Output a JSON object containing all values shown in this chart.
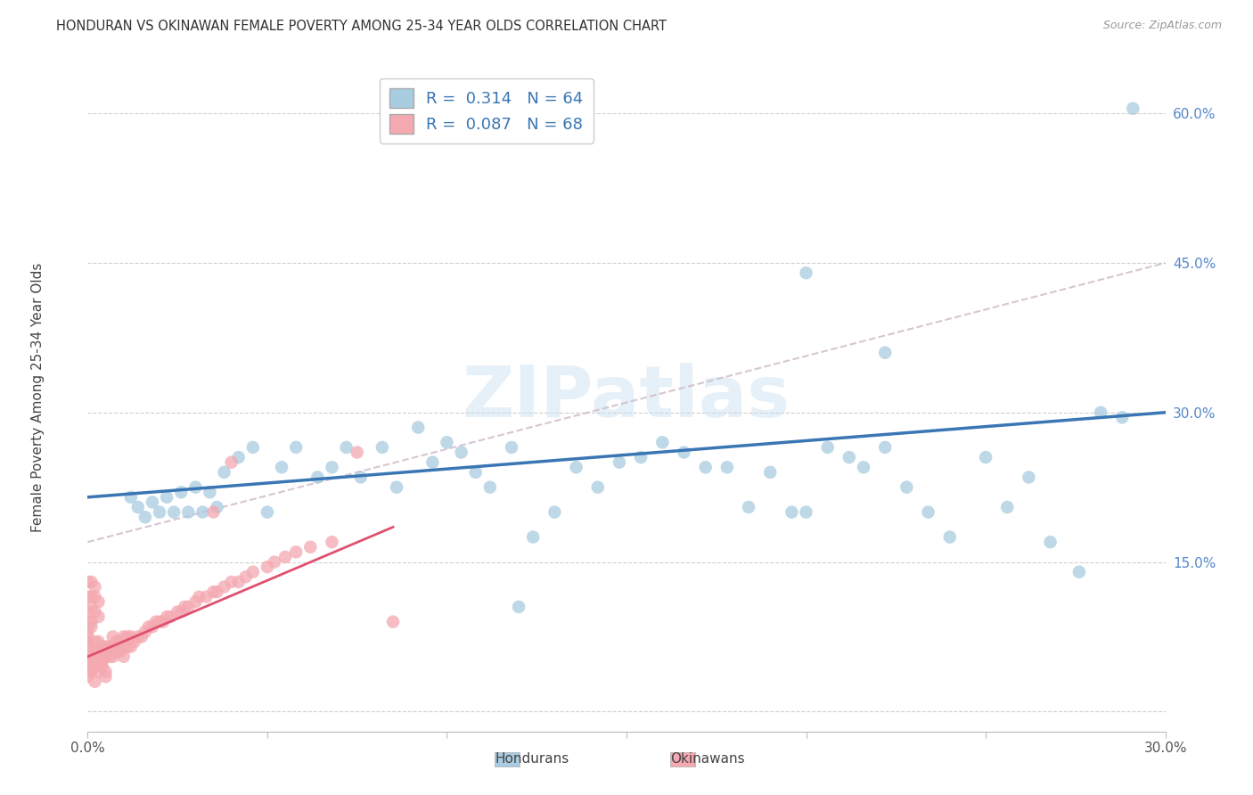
{
  "title": "HONDURAN VS OKINAWAN FEMALE POVERTY AMONG 25-34 YEAR OLDS CORRELATION CHART",
  "source": "Source: ZipAtlas.com",
  "ylabel": "Female Poverty Among 25-34 Year Olds",
  "xlim": [
    0.0,
    0.3
  ],
  "ylim": [
    -0.02,
    0.65
  ],
  "xticks": [
    0.0,
    0.05,
    0.1,
    0.15,
    0.2,
    0.25,
    0.3
  ],
  "yticks": [
    0.0,
    0.15,
    0.3,
    0.45,
    0.6
  ],
  "xlabel_labels": [
    "0.0%",
    "",
    "",
    "",
    "",
    "",
    "30.0%"
  ],
  "ylabel_labels": [
    "",
    "15.0%",
    "30.0%",
    "45.0%",
    "60.0%"
  ],
  "blue_R": 0.314,
  "blue_N": 64,
  "pink_R": 0.087,
  "pink_N": 68,
  "blue_color": "#a8cce0",
  "pink_color": "#f4a9b0",
  "blue_line_color": "#3a76b4",
  "pink_line_color": "#e05070",
  "dashed_line_color": "#ccb8c8",
  "watermark": "ZIPatlas",
  "blue_scatter_x": [
    0.012,
    0.014,
    0.016,
    0.018,
    0.02,
    0.022,
    0.024,
    0.026,
    0.028,
    0.03,
    0.032,
    0.034,
    0.036,
    0.038,
    0.042,
    0.046,
    0.05,
    0.054,
    0.058,
    0.064,
    0.068,
    0.072,
    0.076,
    0.082,
    0.086,
    0.092,
    0.096,
    0.1,
    0.104,
    0.108,
    0.112,
    0.118,
    0.124,
    0.13,
    0.136,
    0.142,
    0.148,
    0.154,
    0.16,
    0.166,
    0.172,
    0.178,
    0.184,
    0.19,
    0.196,
    0.2,
    0.206,
    0.212,
    0.216,
    0.222,
    0.228,
    0.234,
    0.24,
    0.25,
    0.256,
    0.262,
    0.268,
    0.276,
    0.282,
    0.288,
    0.291,
    0.2,
    0.222,
    0.12
  ],
  "blue_scatter_y": [
    0.215,
    0.205,
    0.195,
    0.21,
    0.2,
    0.215,
    0.2,
    0.22,
    0.2,
    0.225,
    0.2,
    0.22,
    0.205,
    0.24,
    0.255,
    0.265,
    0.2,
    0.245,
    0.265,
    0.235,
    0.245,
    0.265,
    0.235,
    0.265,
    0.225,
    0.285,
    0.25,
    0.27,
    0.26,
    0.24,
    0.225,
    0.265,
    0.175,
    0.2,
    0.245,
    0.225,
    0.25,
    0.255,
    0.27,
    0.26,
    0.245,
    0.245,
    0.205,
    0.24,
    0.2,
    0.2,
    0.265,
    0.255,
    0.245,
    0.265,
    0.225,
    0.2,
    0.175,
    0.255,
    0.205,
    0.235,
    0.17,
    0.14,
    0.3,
    0.295,
    0.605,
    0.44,
    0.36,
    0.105
  ],
  "pink_scatter_x": [
    0.0,
    0.0,
    0.0,
    0.0,
    0.0,
    0.001,
    0.001,
    0.002,
    0.002,
    0.002,
    0.003,
    0.003,
    0.003,
    0.004,
    0.004,
    0.004,
    0.005,
    0.005,
    0.005,
    0.006,
    0.006,
    0.007,
    0.007,
    0.007,
    0.008,
    0.008,
    0.009,
    0.009,
    0.01,
    0.01,
    0.01,
    0.011,
    0.011,
    0.012,
    0.012,
    0.013,
    0.014,
    0.015,
    0.016,
    0.017,
    0.018,
    0.019,
    0.02,
    0.021,
    0.022,
    0.023,
    0.025,
    0.026,
    0.027,
    0.028,
    0.03,
    0.031,
    0.033,
    0.035,
    0.036,
    0.038,
    0.04,
    0.042,
    0.044,
    0.046,
    0.05,
    0.052,
    0.055,
    0.058,
    0.062,
    0.068,
    0.075,
    0.085
  ],
  "pink_scatter_y": [
    0.055,
    0.06,
    0.065,
    0.07,
    0.075,
    0.04,
    0.055,
    0.045,
    0.06,
    0.07,
    0.05,
    0.06,
    0.07,
    0.045,
    0.055,
    0.065,
    0.04,
    0.055,
    0.065,
    0.055,
    0.065,
    0.055,
    0.065,
    0.075,
    0.06,
    0.07,
    0.06,
    0.07,
    0.055,
    0.065,
    0.075,
    0.065,
    0.075,
    0.065,
    0.075,
    0.07,
    0.075,
    0.075,
    0.08,
    0.085,
    0.085,
    0.09,
    0.09,
    0.09,
    0.095,
    0.095,
    0.1,
    0.1,
    0.105,
    0.105,
    0.11,
    0.115,
    0.115,
    0.12,
    0.12,
    0.125,
    0.13,
    0.13,
    0.135,
    0.14,
    0.145,
    0.15,
    0.155,
    0.16,
    0.165,
    0.17,
    0.26,
    0.09
  ],
  "pink_scatter_special": [
    [
      0.0,
      0.035
    ],
    [
      0.0,
      0.04
    ],
    [
      0.0,
      0.045
    ],
    [
      0.0,
      0.05
    ],
    [
      0.002,
      0.03
    ],
    [
      0.003,
      0.04
    ],
    [
      0.004,
      0.05
    ],
    [
      0.005,
      0.035
    ],
    [
      0.0,
      0.08
    ],
    [
      0.0,
      0.09
    ],
    [
      0.001,
      0.085
    ],
    [
      0.001,
      0.09
    ],
    [
      0.0,
      0.1
    ],
    [
      0.001,
      0.105
    ],
    [
      0.002,
      0.1
    ],
    [
      0.003,
      0.095
    ],
    [
      0.0,
      0.115
    ],
    [
      0.001,
      0.115
    ],
    [
      0.002,
      0.115
    ],
    [
      0.003,
      0.11
    ],
    [
      0.0,
      0.13
    ],
    [
      0.001,
      0.13
    ],
    [
      0.002,
      0.125
    ],
    [
      0.035,
      0.2
    ],
    [
      0.04,
      0.25
    ]
  ],
  "figsize": [
    14.06,
    8.92
  ],
  "dpi": 100
}
